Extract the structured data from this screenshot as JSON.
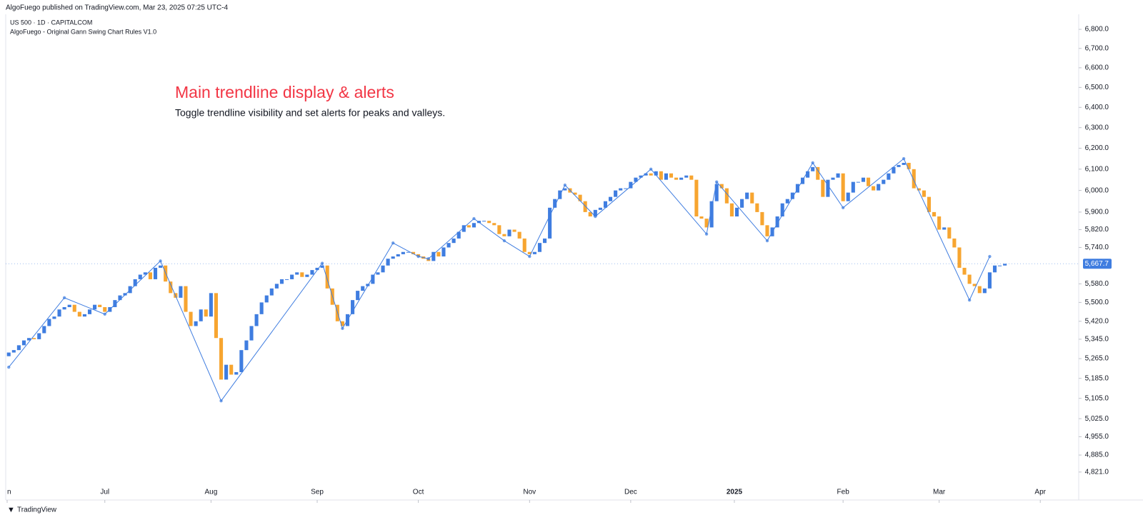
{
  "header": {
    "publisher": "AlgoFuego published on TradingView.com, Mar 23, 2025 07:25 UTC-4",
    "brand": "TradingView"
  },
  "chart_data": {
    "type": "candlestick",
    "symbol": "US 500 · 1D · CAPITALCOM",
    "indicator": "AlgoFuego - Original Gann Swing Chart Rules V1.0",
    "annotation_title": "Main trendline display & alerts",
    "annotation_text": "Toggle trendline visibility and set alerts for peaks and valleys.",
    "up_color": "#3f7de0",
    "down_color": "#f7a530",
    "log_scale": true,
    "xlim": [
      -0.6,
      211.6
    ],
    "xticks": [
      {
        "value": -1,
        "label": "n"
      },
      {
        "value": 19,
        "label": "Jul"
      },
      {
        "value": 40,
        "label": "Aug"
      },
      {
        "value": 61,
        "label": "Sep"
      },
      {
        "value": 81,
        "label": "Oct"
      },
      {
        "value": 103,
        "label": "Nov"
      },
      {
        "value": 123,
        "label": "Dec"
      },
      {
        "value": 143.5,
        "label": "2025"
      },
      {
        "value": 165,
        "label": "Feb"
      },
      {
        "value": 184,
        "label": "Mar"
      },
      {
        "value": 204,
        "label": "Apr"
      }
    ],
    "ylim": [
      4770,
      6880
    ],
    "yticks": [
      {
        "value": 6800,
        "label": "6,800.0"
      },
      {
        "value": 6700,
        "label": "6,700.0"
      },
      {
        "value": 6600,
        "label": "6,600.0"
      },
      {
        "value": 6500,
        "label": "6,500.0"
      },
      {
        "value": 6400,
        "label": "6,400.0"
      },
      {
        "value": 6300,
        "label": "6,300.0"
      },
      {
        "value": 6200,
        "label": "6,200.0"
      },
      {
        "value": 6100,
        "label": "6,100.0"
      },
      {
        "value": 6000,
        "label": "6,000.0"
      },
      {
        "value": 5900,
        "label": "5,900.0"
      },
      {
        "value": 5820,
        "label": "5,820.0"
      },
      {
        "value": 5740,
        "label": "5,740.0"
      },
      {
        "value": 5580,
        "label": "5,580.0"
      },
      {
        "value": 5500,
        "label": "5,500.0"
      },
      {
        "value": 5420,
        "label": "5,420.0"
      },
      {
        "value": 5345,
        "label": "5,345.0"
      },
      {
        "value": 5265,
        "label": "5,265.0"
      },
      {
        "value": 5185,
        "label": "5,185.0"
      },
      {
        "value": 5105,
        "label": "5,105.0"
      },
      {
        "value": 5025,
        "label": "5,025.0"
      },
      {
        "value": 4955,
        "label": "4,955.0"
      },
      {
        "value": 4885,
        "label": "4,885.0"
      },
      {
        "value": 4821,
        "label": "4,821.0"
      }
    ],
    "last_price": {
      "value": 5667.7,
      "label": "5,667.7"
    },
    "open": [
      5275,
      5290,
      5300,
      5320,
      5340,
      5350,
      5345,
      5370,
      5400,
      5430,
      5440,
      5470,
      5480,
      5490,
      5460,
      5440,
      5450,
      5470,
      5490,
      5480,
      5460,
      5480,
      5510,
      5530,
      5540,
      5570,
      5600,
      5620,
      5630,
      5600,
      5650,
      5660,
      5590,
      5540,
      5520,
      5570,
      5460,
      5400,
      5420,
      5470,
      5440,
      5540,
      5350,
      5180,
      5240,
      5200,
      5210,
      5300,
      5340,
      5400,
      5450,
      5500,
      5530,
      5560,
      5580,
      5600,
      5600,
      5620,
      5630,
      5610,
      5620,
      5640,
      5650,
      5660,
      5560,
      5490,
      5420,
      5400,
      5450,
      5510,
      5550,
      5570,
      5580,
      5620,
      5630,
      5660,
      5690,
      5700,
      5710,
      5720,
      5720,
      5710,
      5700,
      5690,
      5680,
      5720,
      5700,
      5740,
      5760,
      5780,
      5810,
      5840,
      5830,
      5850,
      5860,
      5860,
      5850,
      5840,
      5800,
      5790,
      5820,
      5810,
      5780,
      5720,
      5710,
      5720,
      5760,
      5780,
      5920,
      5960,
      6000,
      6010,
      5990,
      5980,
      5950,
      5900,
      5880,
      5910,
      5920,
      5950,
      5970,
      6000,
      6010,
      6010,
      6040,
      6060,
      6070,
      6080,
      6070,
      6090,
      6050,
      6080,
      6060,
      6050,
      6060,
      6070,
      6050,
      5880,
      5870,
      5830,
      5950,
      6030,
      6010,
      5940,
      5880,
      5920,
      5960,
      5990,
      5940,
      5900,
      5840,
      5790,
      5830,
      5880,
      5940,
      5960,
      5990,
      6030,
      6060,
      6090,
      6110,
      6050,
      5970,
      6050,
      6060,
      6080,
      5950,
      5990,
      6040,
      6040,
      6060,
      6020,
      6000,
      6030,
      6050,
      6080,
      6110,
      6120,
      6130,
      6100,
      6010,
      6000,
      5970,
      5900,
      5880,
      5820,
      5830,
      5780,
      5740,
      5650,
      5620,
      5580,
      5570,
      5540,
      5560,
      5630,
      5660,
      5660
    ],
    "close": [
      5290,
      5300,
      5320,
      5340,
      5350,
      5345,
      5370,
      5400,
      5430,
      5440,
      5470,
      5480,
      5490,
      5460,
      5440,
      5450,
      5470,
      5490,
      5480,
      5460,
      5480,
      5510,
      5530,
      5540,
      5570,
      5600,
      5620,
      5630,
      5600,
      5650,
      5660,
      5590,
      5540,
      5520,
      5570,
      5460,
      5400,
      5420,
      5470,
      5440,
      5540,
      5350,
      5180,
      5240,
      5200,
      5210,
      5300,
      5340,
      5400,
      5450,
      5500,
      5530,
      5560,
      5580,
      5600,
      5600,
      5620,
      5630,
      5610,
      5620,
      5640,
      5650,
      5660,
      5560,
      5490,
      5420,
      5400,
      5450,
      5510,
      5550,
      5570,
      5580,
      5620,
      5630,
      5660,
      5690,
      5700,
      5710,
      5720,
      5720,
      5710,
      5700,
      5690,
      5680,
      5720,
      5700,
      5740,
      5760,
      5780,
      5810,
      5840,
      5830,
      5850,
      5860,
      5860,
      5850,
      5840,
      5800,
      5790,
      5820,
      5810,
      5780,
      5720,
      5710,
      5720,
      5760,
      5780,
      5920,
      5960,
      6000,
      6010,
      5990,
      5980,
      5950,
      5900,
      5880,
      5910,
      5920,
      5950,
      5970,
      6000,
      6010,
      6010,
      6040,
      6060,
      6070,
      6080,
      6070,
      6090,
      6050,
      6080,
      6060,
      6050,
      6060,
      6070,
      6050,
      5880,
      5870,
      5830,
      5950,
      6030,
      6010,
      5940,
      5880,
      5920,
      5960,
      5990,
      5940,
      5900,
      5840,
      5790,
      5830,
      5880,
      5940,
      5960,
      5990,
      6030,
      6060,
      6090,
      6110,
      6050,
      5970,
      6050,
      6060,
      6080,
      5950,
      5990,
      6040,
      6040,
      6060,
      6020,
      6000,
      6030,
      6050,
      6080,
      6110,
      6120,
      6130,
      6100,
      6010,
      6000,
      5970,
      5900,
      5880,
      5820,
      5830,
      5780,
      5740,
      5650,
      5620,
      5580,
      5570,
      5540,
      5560,
      5630,
      5660,
      5660,
      5667.7
    ],
    "swing_line": {
      "color": "#3f7de0",
      "x": [
        0,
        11,
        19,
        30,
        42,
        62,
        66,
        76,
        81,
        83,
        92,
        98,
        103,
        110,
        116,
        127,
        138,
        140,
        150,
        159,
        165,
        177,
        190,
        194
      ],
      "values": [
        5230,
        5520,
        5450,
        5680,
        5095,
        5670,
        5390,
        5760,
        5700,
        5690,
        5870,
        5770,
        5700,
        6025,
        5880,
        6100,
        5800,
        6040,
        5770,
        6130,
        5920,
        6150,
        5510,
        5700
      ]
    }
  }
}
